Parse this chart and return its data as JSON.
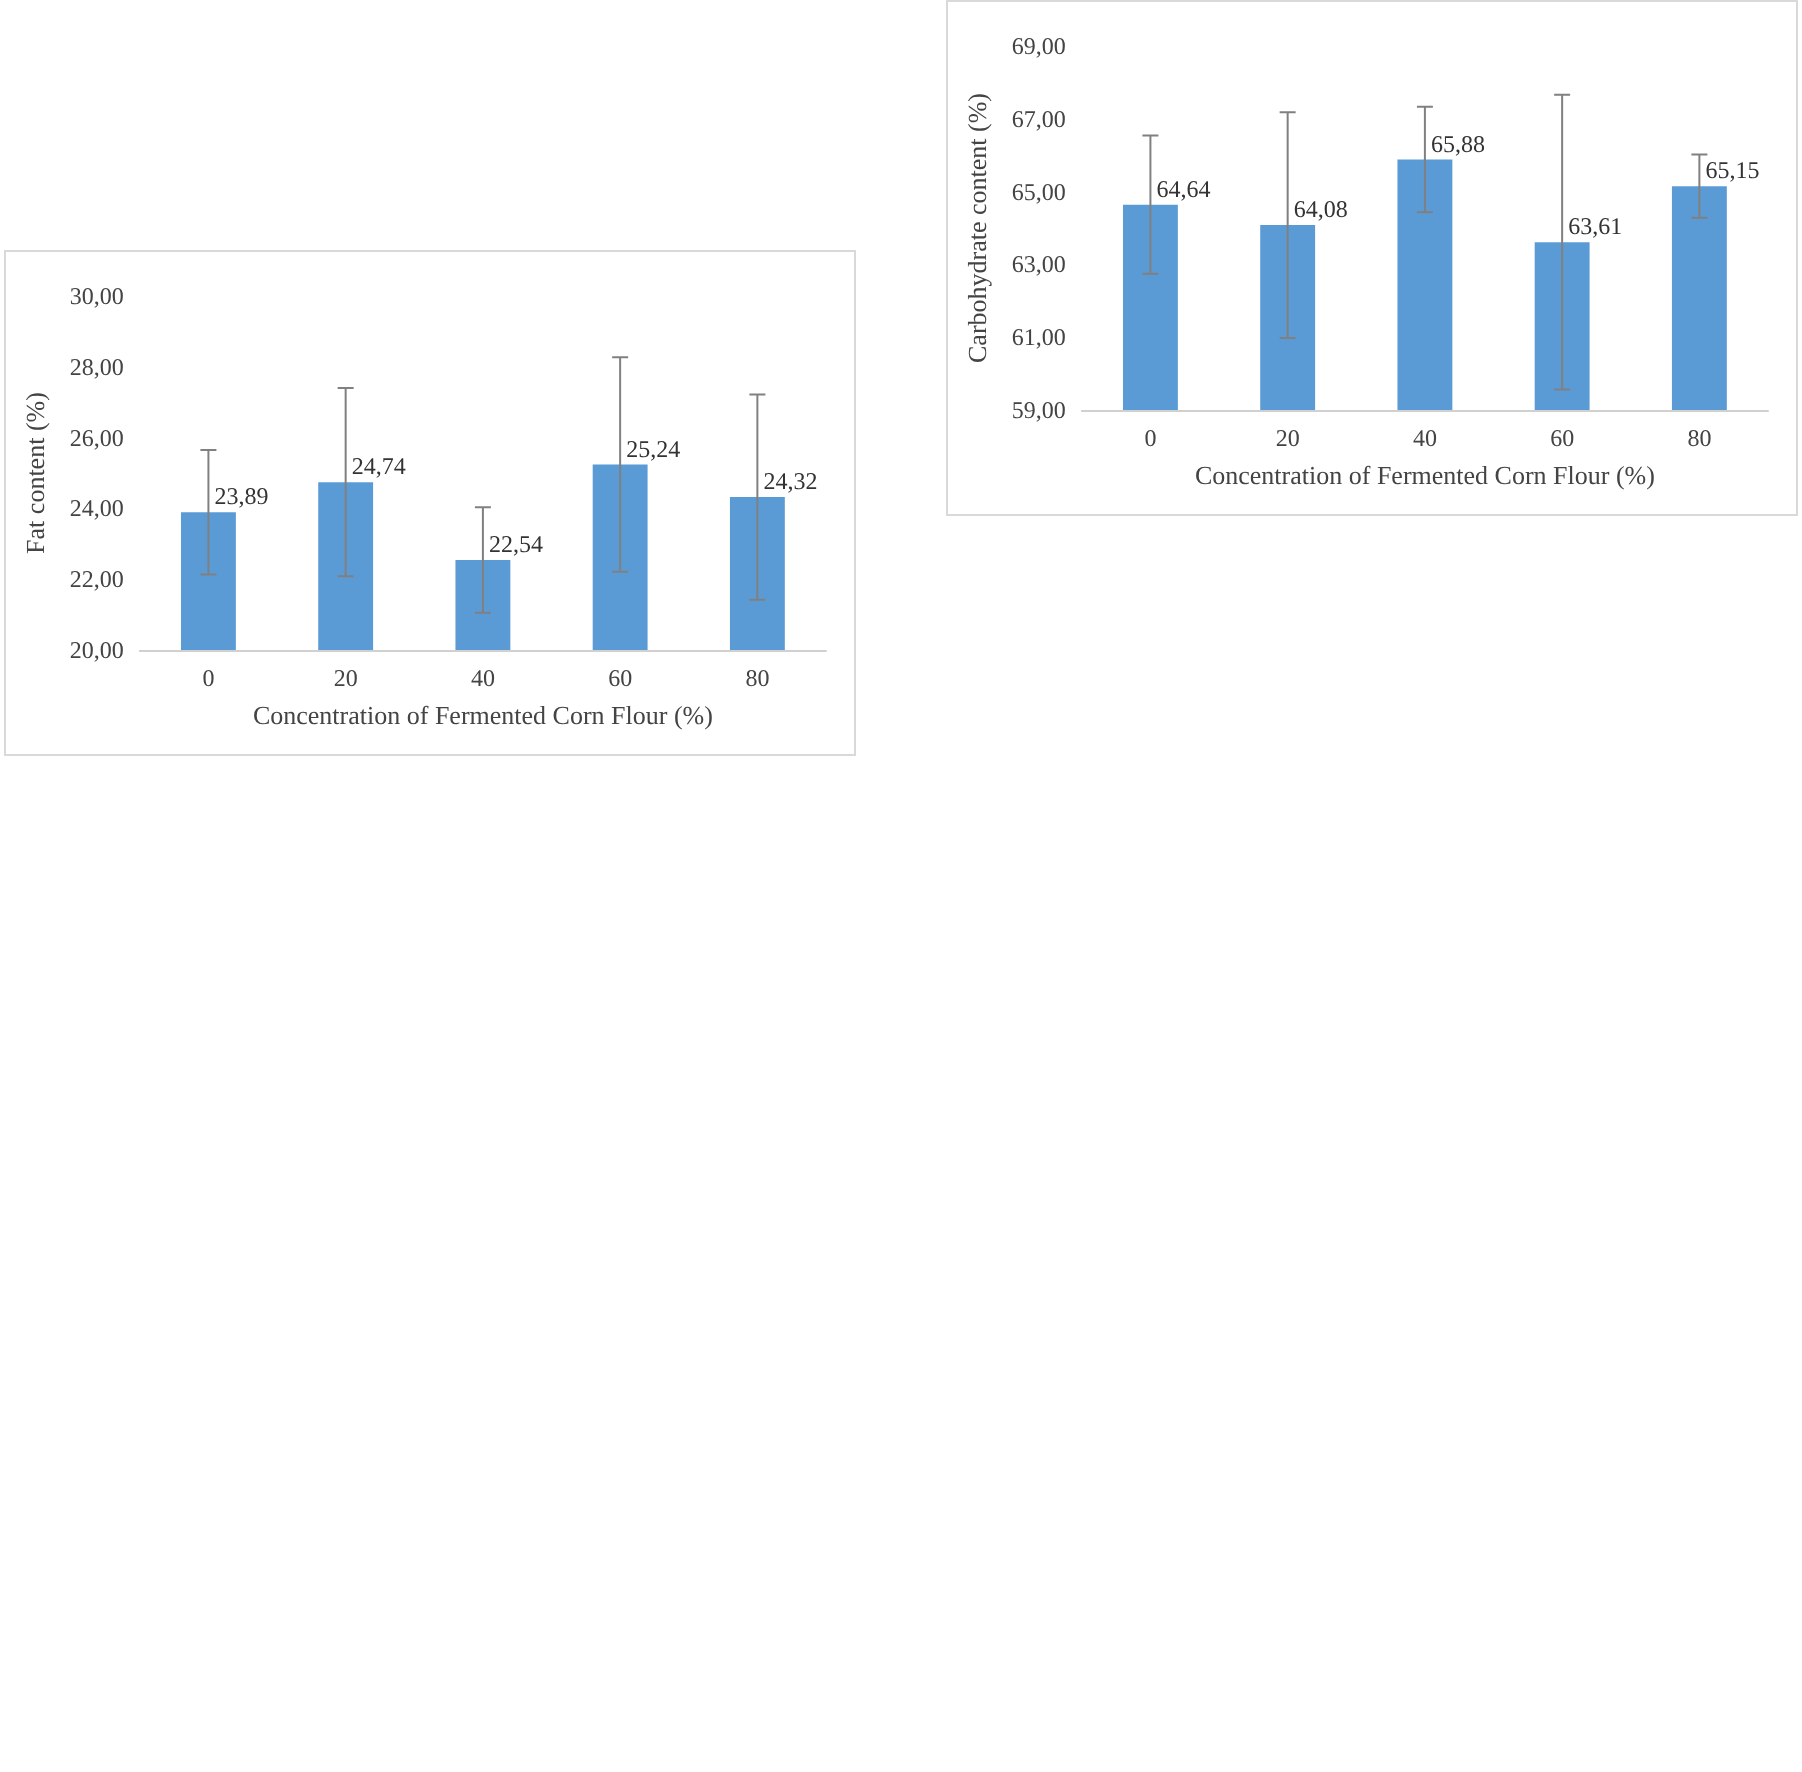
{
  "chart_data": [
    {
      "type": "bar",
      "ylabel": "Fat content (%)",
      "xlabel": "Concentration of Fermented Corn Flour (%)",
      "categories": [
        "0",
        "20",
        "40",
        "60",
        "80"
      ],
      "values": [
        23.89,
        24.74,
        22.54,
        25.24,
        24.32
      ],
      "errors": [
        1.76,
        2.66,
        1.49,
        3.03,
        2.9
      ],
      "color": "#5b9bd5",
      "ylim": [
        20,
        30
      ],
      "yticks": [
        {
          "value": 20,
          "label": "20,00"
        },
        {
          "value": 22,
          "label": "22,00"
        },
        {
          "value": 24,
          "label": "24,00"
        },
        {
          "value": 26,
          "label": "26,00"
        },
        {
          "value": 28,
          "label": "28,00"
        },
        {
          "value": 30,
          "label": "30,00"
        }
      ],
      "data_labels": true,
      "value_labels": [
        "23,89",
        "24,74",
        "22,54",
        "25,24",
        "24,32"
      ]
    },
    {
      "type": "bar",
      "ylabel": "Carbohydrate content (%)",
      "xlabel": "Concentration of Fermented Corn Flour (%)",
      "categories": [
        "0",
        "20",
        "40",
        "60",
        "80"
      ],
      "values": [
        64.64,
        64.08,
        65.88,
        63.61,
        65.15
      ],
      "errors": [
        1.9,
        3.1,
        1.45,
        4.05,
        0.87
      ],
      "color": "#5b9bd5",
      "ylim": [
        59,
        69
      ],
      "yticks": [
        {
          "value": 59,
          "label": "59,00"
        },
        {
          "value": 61,
          "label": "61,00"
        },
        {
          "value": 63,
          "label": "63,00"
        },
        {
          "value": 65,
          "label": "65,00"
        },
        {
          "value": 67,
          "label": "67,00"
        },
        {
          "value": 69,
          "label": "69,00"
        }
      ],
      "data_labels": true,
      "value_labels": [
        "64,64",
        "64,08",
        "65,88",
        "63,61",
        "65,15"
      ]
    }
  ]
}
